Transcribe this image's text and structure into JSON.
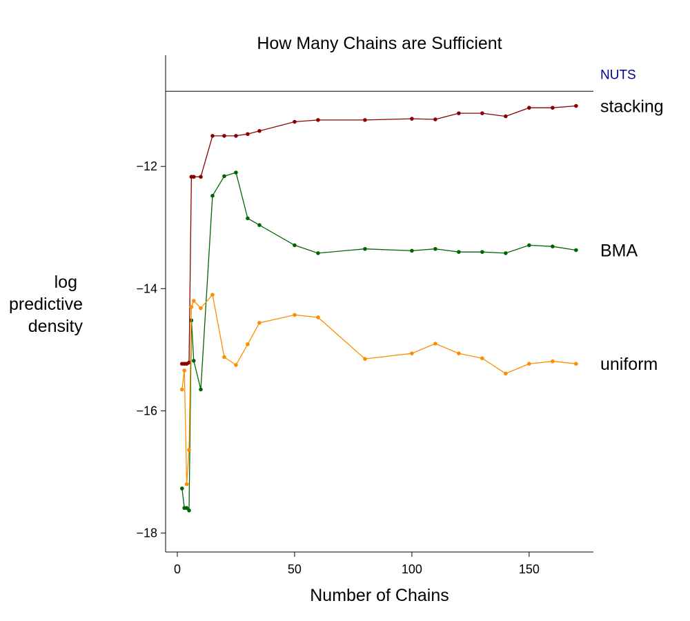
{
  "chart_data": {
    "type": "line",
    "title": "How Many Chains are Sufficient",
    "xlabel": "Number of Chains",
    "ylabel_lines": [
      "log",
      "predictive",
      "density"
    ],
    "xlim": [
      -5,
      177.4
    ],
    "ylim": [
      -18.31,
      -10.18
    ],
    "xticks": [
      0,
      50,
      100,
      150
    ],
    "yticks": [
      -18,
      -16,
      -14,
      -12
    ],
    "grid": false,
    "x": [
      2,
      3,
      4,
      5,
      6,
      7,
      10,
      15,
      20,
      25,
      30,
      35,
      50,
      60,
      80,
      100,
      110,
      120,
      130,
      140,
      150,
      160,
      170
    ],
    "reference_line": {
      "name": "NUTS",
      "value": -10.77,
      "color": "#00008b"
    },
    "series": [
      {
        "name": "stacking",
        "color": "#8b0000",
        "values": [
          -15.23,
          -15.23,
          -15.23,
          -15.21,
          -12.17,
          -12.17,
          -12.17,
          -11.5,
          -11.5,
          -11.5,
          -11.47,
          -11.42,
          -11.27,
          -11.24,
          -11.24,
          -11.22,
          -11.23,
          -11.13,
          -11.13,
          -11.18,
          -11.04,
          -11.04,
          -11.01
        ]
      },
      {
        "name": "BMA",
        "color": "#006400",
        "values": [
          -17.27,
          -17.59,
          -17.59,
          -17.63,
          -14.52,
          -15.18,
          -15.65,
          -12.48,
          -12.16,
          -12.1,
          -12.85,
          -12.96,
          -13.29,
          -13.42,
          -13.35,
          -13.38,
          -13.35,
          -13.4,
          -13.4,
          -13.42,
          -13.29,
          -13.31,
          -13.37
        ]
      },
      {
        "name": "uniform",
        "color": "#ff8c00",
        "values": [
          -15.65,
          -15.34,
          -17.2,
          -16.64,
          -14.3,
          -14.2,
          -14.32,
          -14.1,
          -15.12,
          -15.25,
          -14.91,
          -14.56,
          -14.43,
          -14.47,
          -15.15,
          -15.06,
          -14.9,
          -15.06,
          -15.14,
          -15.39,
          -15.23,
          -15.19,
          -15.23
        ]
      }
    ]
  }
}
